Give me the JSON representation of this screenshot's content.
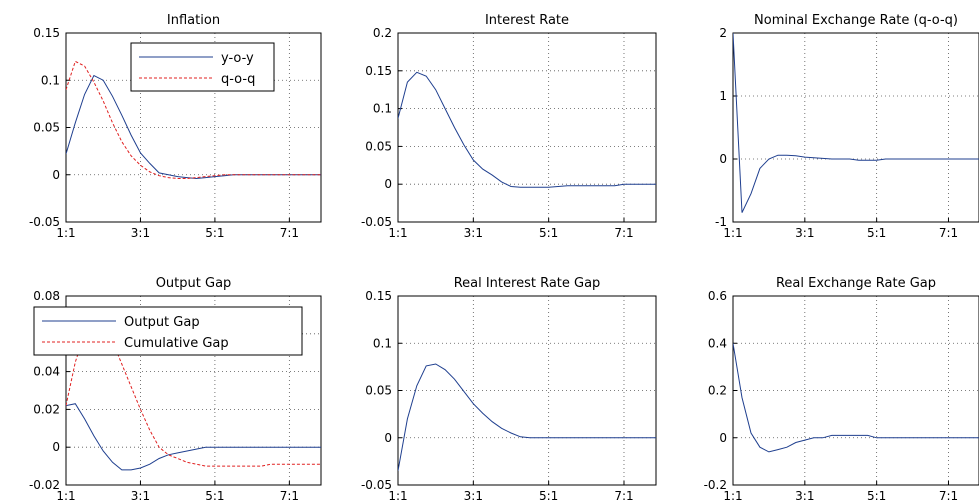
{
  "chart_data": [
    {
      "type": "line",
      "title": "Inflation",
      "xticks": [
        "1:1",
        "3:1",
        "5:1",
        "7:1"
      ],
      "ylim": [
        -0.05,
        0.15
      ],
      "yticks": [
        -0.05,
        0,
        0.05,
        0.1,
        0.15
      ],
      "yticklabels": [
        "-0.05",
        "0",
        "0.05",
        "0.1",
        "0.15"
      ],
      "grid": true,
      "legend": "top-right",
      "x": [
        1,
        1.25,
        1.5,
        1.75,
        2,
        2.25,
        2.5,
        2.75,
        3,
        3.25,
        3.5,
        3.75,
        4,
        4.25,
        4.5,
        4.75,
        5,
        5.25,
        5.5,
        5.75,
        6,
        6.25,
        6.5,
        6.75,
        7,
        7.25,
        7.5,
        7.75,
        8
      ],
      "series": [
        {
          "name": "y-o-y",
          "color": "#1f3f8f",
          "dash": "solid",
          "values": [
            0.022,
            0.055,
            0.085,
            0.105,
            0.1,
            0.083,
            0.063,
            0.042,
            0.023,
            0.012,
            0.002,
            0.0,
            -0.002,
            -0.003,
            -0.004,
            -0.003,
            -0.002,
            -0.001,
            0,
            0,
            0,
            0,
            0,
            0,
            0,
            0,
            0,
            0,
            0
          ]
        },
        {
          "name": "q-o-q",
          "color": "#e02020",
          "dash": "dashed",
          "values": [
            0.09,
            0.12,
            0.115,
            0.098,
            0.078,
            0.055,
            0.035,
            0.02,
            0.01,
            0.003,
            -0.001,
            -0.003,
            -0.004,
            -0.004,
            -0.003,
            -0.002,
            -0.001,
            0,
            0,
            0,
            0,
            0,
            0,
            0,
            0,
            0,
            0,
            0,
            0
          ]
        }
      ]
    },
    {
      "type": "line",
      "title": "Interest Rate",
      "xticks": [
        "1:1",
        "3:1",
        "5:1",
        "7:1"
      ],
      "ylim": [
        -0.05,
        0.2
      ],
      "yticks": [
        -0.05,
        0,
        0.05,
        0.1,
        0.15,
        0.2
      ],
      "yticklabels": [
        "-0.05",
        "0",
        "0.05",
        "0.1",
        "0.15",
        "0.2"
      ],
      "grid": true,
      "x": [
        1,
        1.25,
        1.5,
        1.75,
        2,
        2.25,
        2.5,
        2.75,
        3,
        3.25,
        3.5,
        3.75,
        4,
        4.25,
        4.5,
        4.75,
        5,
        5.25,
        5.5,
        5.75,
        6,
        6.25,
        6.5,
        6.75,
        7,
        7.25,
        7.5,
        7.75,
        8
      ],
      "series": [
        {
          "color": "#1f3f8f",
          "dash": "solid",
          "values": [
            0.087,
            0.135,
            0.148,
            0.143,
            0.125,
            0.1,
            0.075,
            0.052,
            0.032,
            0.02,
            0.012,
            0.003,
            -0.003,
            -0.004,
            -0.004,
            -0.004,
            -0.004,
            -0.003,
            -0.002,
            -0.002,
            -0.002,
            -0.002,
            -0.002,
            -0.002,
            0,
            0,
            0,
            0,
            0
          ]
        }
      ]
    },
    {
      "type": "line",
      "title": "Nominal Exchange Rate (q-o-q)",
      "xticks": [
        "1:1",
        "3:1",
        "5:1",
        "7:1"
      ],
      "ylim": [
        -1,
        2
      ],
      "yticks": [
        -1,
        0,
        1,
        2
      ],
      "yticklabels": [
        "-1",
        "0",
        "1",
        "2"
      ],
      "grid": true,
      "x": [
        1,
        1.25,
        1.5,
        1.75,
        2,
        2.25,
        2.5,
        2.75,
        3,
        3.25,
        3.5,
        3.75,
        4,
        4.25,
        4.5,
        4.75,
        5,
        5.25,
        5.5,
        5.75,
        6,
        6.25,
        6.5,
        6.75,
        7,
        7.25,
        7.5,
        7.75,
        8
      ],
      "series": [
        {
          "color": "#1f3f8f",
          "dash": "solid",
          "values": [
            2.0,
            -0.85,
            -0.55,
            -0.15,
            0.0,
            0.06,
            0.06,
            0.05,
            0.03,
            0.02,
            0.01,
            0.0,
            0.0,
            0.0,
            -0.02,
            -0.02,
            -0.02,
            0.0,
            0.0,
            0.0,
            0.0,
            0.0,
            0.0,
            0.0,
            0.0,
            0.0,
            0.0,
            0.0,
            0.0
          ]
        }
      ]
    },
    {
      "type": "line",
      "title": "Output Gap",
      "xticks": [
        "1:1",
        "3:1",
        "5:1",
        "7:1"
      ],
      "ylim": [
        -0.02,
        0.08
      ],
      "yticks": [
        -0.02,
        0,
        0.02,
        0.04,
        0.06,
        0.08
      ],
      "yticklabels": [
        "-0.02",
        "0",
        "0.02",
        "0.04",
        "0.06",
        "0.08"
      ],
      "grid": true,
      "legend": "top-left",
      "x": [
        1,
        1.25,
        1.5,
        1.75,
        2,
        2.25,
        2.5,
        2.75,
        3,
        3.25,
        3.5,
        3.75,
        4,
        4.25,
        4.5,
        4.75,
        5,
        5.25,
        5.5,
        5.75,
        6,
        6.25,
        6.5,
        6.75,
        7,
        7.25,
        7.5,
        7.75,
        8
      ],
      "series": [
        {
          "name": "Output Gap",
          "color": "#1f3f8f",
          "dash": "solid",
          "values": [
            0.022,
            0.023,
            0.015,
            0.006,
            -0.002,
            -0.008,
            -0.012,
            -0.012,
            -0.011,
            -0.009,
            -0.006,
            -0.004,
            -0.003,
            -0.002,
            -0.001,
            0.0,
            0.0,
            0.0,
            0.0,
            0.0,
            0.0,
            0.0,
            0.0,
            0.0,
            0.0,
            0.0,
            0.0,
            0.0,
            0.0
          ]
        },
        {
          "name": "Cumulative Gap",
          "color": "#e02020",
          "dash": "dashed",
          "values": [
            0.022,
            0.045,
            0.06,
            0.066,
            0.064,
            0.056,
            0.044,
            0.032,
            0.02,
            0.009,
            0.0,
            -0.004,
            -0.006,
            -0.008,
            -0.009,
            -0.01,
            -0.01,
            -0.01,
            -0.01,
            -0.01,
            -0.01,
            -0.01,
            -0.009,
            -0.009,
            -0.009,
            -0.009,
            -0.009,
            -0.009,
            -0.009
          ]
        }
      ]
    },
    {
      "type": "line",
      "title": "Real Interest Rate Gap",
      "xticks": [
        "1:1",
        "3:1",
        "5:1",
        "7:1"
      ],
      "ylim": [
        -0.05,
        0.15
      ],
      "yticks": [
        -0.05,
        0,
        0.05,
        0.1,
        0.15
      ],
      "yticklabels": [
        "-0.05",
        "0",
        "0.05",
        "0.1",
        "0.15"
      ],
      "grid": true,
      "x": [
        1,
        1.25,
        1.5,
        1.75,
        2,
        2.25,
        2.5,
        2.75,
        3,
        3.25,
        3.5,
        3.75,
        4,
        4.25,
        4.5,
        4.75,
        5,
        5.25,
        5.5,
        5.75,
        6,
        6.25,
        6.5,
        6.75,
        7,
        7.25,
        7.5,
        7.75,
        8
      ],
      "series": [
        {
          "color": "#1f3f8f",
          "dash": "solid",
          "values": [
            -0.035,
            0.02,
            0.055,
            0.076,
            0.078,
            0.072,
            0.062,
            0.049,
            0.036,
            0.026,
            0.017,
            0.01,
            0.005,
            0.001,
            0.0,
            0.0,
            0.0,
            0.0,
            0.0,
            0.0,
            0.0,
            0.0,
            0.0,
            0.0,
            0.0,
            0.0,
            0.0,
            0.0,
            0.0
          ]
        }
      ]
    },
    {
      "type": "line",
      "title": "Real Exchange Rate Gap",
      "xticks": [
        "1:1",
        "3:1",
        "5:1",
        "7:1"
      ],
      "ylim": [
        -0.2,
        0.6
      ],
      "yticks": [
        -0.2,
        0,
        0.2,
        0.4,
        0.6
      ],
      "yticklabels": [
        "-0.2",
        "0",
        "0.2",
        "0.4",
        "0.6"
      ],
      "grid": true,
      "x": [
        1,
        1.25,
        1.5,
        1.75,
        2,
        2.25,
        2.5,
        2.75,
        3,
        3.25,
        3.5,
        3.75,
        4,
        4.25,
        4.5,
        4.75,
        5,
        5.25,
        5.5,
        5.75,
        6,
        6.25,
        6.5,
        6.75,
        7,
        7.25,
        7.5,
        7.75,
        8
      ],
      "series": [
        {
          "color": "#1f3f8f",
          "dash": "solid",
          "values": [
            0.4,
            0.17,
            0.02,
            -0.04,
            -0.06,
            -0.05,
            -0.04,
            -0.02,
            -0.01,
            0.0,
            0.0,
            0.01,
            0.01,
            0.01,
            0.01,
            0.01,
            0.0,
            0.0,
            0.0,
            0.0,
            0.0,
            0.0,
            0.0,
            0.0,
            0.0,
            0.0,
            0.0,
            0.0,
            0.0
          ]
        }
      ]
    }
  ]
}
